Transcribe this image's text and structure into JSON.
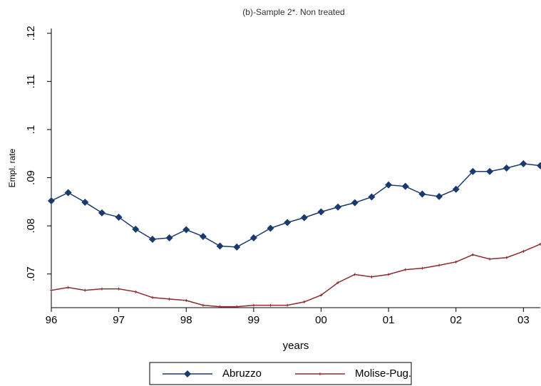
{
  "chart_data": {
    "type": "line",
    "title": "(b)-Sample 2*. Non treated",
    "xlabel": "years",
    "ylabel": "Empl. rate",
    "x": [
      1996,
      1996.25,
      1996.5,
      1996.75,
      1997,
      1997.25,
      1997.5,
      1997.75,
      1998,
      1998.25,
      1998.5,
      1998.75,
      1999,
      1999.25,
      1999.5,
      1999.75,
      2000,
      2000.25,
      2000.5,
      2000.75,
      2001,
      2001.25,
      2001.5,
      2001.75,
      2002,
      2002.25,
      2002.5,
      2002.75,
      2003,
      2003.25
    ],
    "series": [
      {
        "name": "Abruzzo",
        "color": "#1a3a6e",
        "marker": "diamond",
        "values": [
          0.0852,
          0.0869,
          0.0849,
          0.0827,
          0.0818,
          0.0793,
          0.0772,
          0.0775,
          0.0792,
          0.0778,
          0.0758,
          0.0756,
          0.0775,
          0.0795,
          0.0807,
          0.0817,
          0.0829,
          0.0839,
          0.0848,
          0.086,
          0.0885,
          0.0882,
          0.0866,
          0.0861,
          0.0876,
          0.0913,
          0.0913,
          0.092,
          0.0929,
          0.0925
        ]
      },
      {
        "name": "Molise-Pug.",
        "color": "#8b2a2f",
        "marker": "plus",
        "values": [
          0.0666,
          0.0672,
          0.0666,
          0.0669,
          0.0669,
          0.0663,
          0.0651,
          0.0648,
          0.0645,
          0.0635,
          0.0632,
          0.0632,
          0.0635,
          0.0635,
          0.0635,
          0.0642,
          0.0656,
          0.0682,
          0.0699,
          0.0694,
          0.0699,
          0.0709,
          0.0712,
          0.0718,
          0.0725,
          0.074,
          0.0731,
          0.0734,
          0.0747,
          0.0762
        ]
      }
    ],
    "xlim": [
      1996,
      2003.25
    ],
    "xticks": [
      {
        "value": 1996,
        "label": "96"
      },
      {
        "value": 1997,
        "label": "97"
      },
      {
        "value": 1998,
        "label": "98"
      },
      {
        "value": 1999,
        "label": "99"
      },
      {
        "value": 2000,
        "label": "00"
      },
      {
        "value": 2001,
        "label": "01"
      },
      {
        "value": 2002,
        "label": "02"
      },
      {
        "value": 2003,
        "label": "03"
      }
    ],
    "ylim": [
      0.063,
      0.121
    ],
    "yticks": [
      {
        "value": 0.07,
        "label": ".07"
      },
      {
        "value": 0.08,
        "label": ".08"
      },
      {
        "value": 0.09,
        "label": ".09"
      },
      {
        "value": 0.1,
        "label": ".1"
      },
      {
        "value": 0.11,
        "label": ".11"
      },
      {
        "value": 0.12,
        "label": ".12"
      }
    ],
    "grid": false,
    "legend": "bottom"
  }
}
